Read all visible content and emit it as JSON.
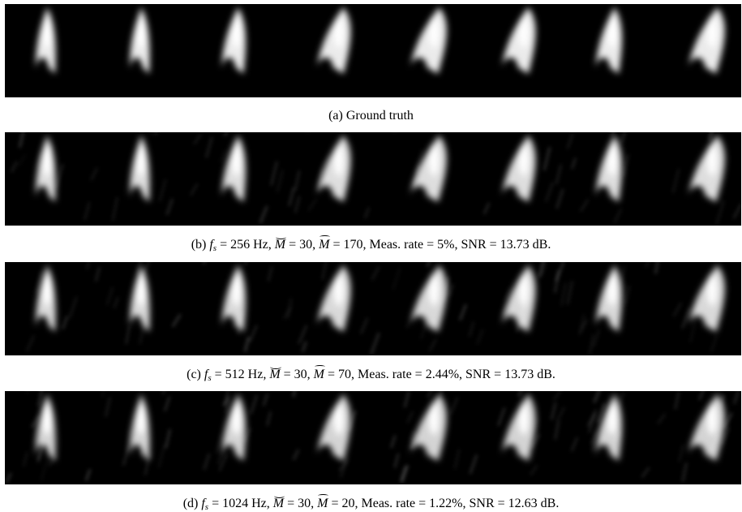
{
  "figure": {
    "panels": [
      {
        "id": "a",
        "kind": "ground-truth",
        "noise": 0.0,
        "caption_text": "(a) Ground truth"
      },
      {
        "id": "b",
        "kind": "reconstruction",
        "noise": 0.35,
        "label": "(b)",
        "fs": "256",
        "m_breve": "30",
        "m_tilde": "170",
        "meas_rate": "5%",
        "snr": "13.73"
      },
      {
        "id": "c",
        "kind": "reconstruction",
        "noise": 0.45,
        "label": "(c)",
        "fs": "512",
        "m_breve": "30",
        "m_tilde": "70",
        "meas_rate": "2.44%",
        "snr": "13.73"
      },
      {
        "id": "d",
        "kind": "reconstruction",
        "noise": 0.6,
        "label": "(d)",
        "fs": "1024",
        "m_breve": "30",
        "m_tilde": "20",
        "meas_rate": "1.22%",
        "snr": "12.63"
      }
    ],
    "strings": {
      "fs_symbol": "f",
      "fs_sub": "s",
      "hz_unit": "Hz",
      "m_symbol": "M",
      "meas_rate_label": "Meas. rate",
      "snr_label": "SNR",
      "db_unit": "dB."
    },
    "colors": {
      "background": "#000000",
      "beat": "#ffffff"
    }
  }
}
